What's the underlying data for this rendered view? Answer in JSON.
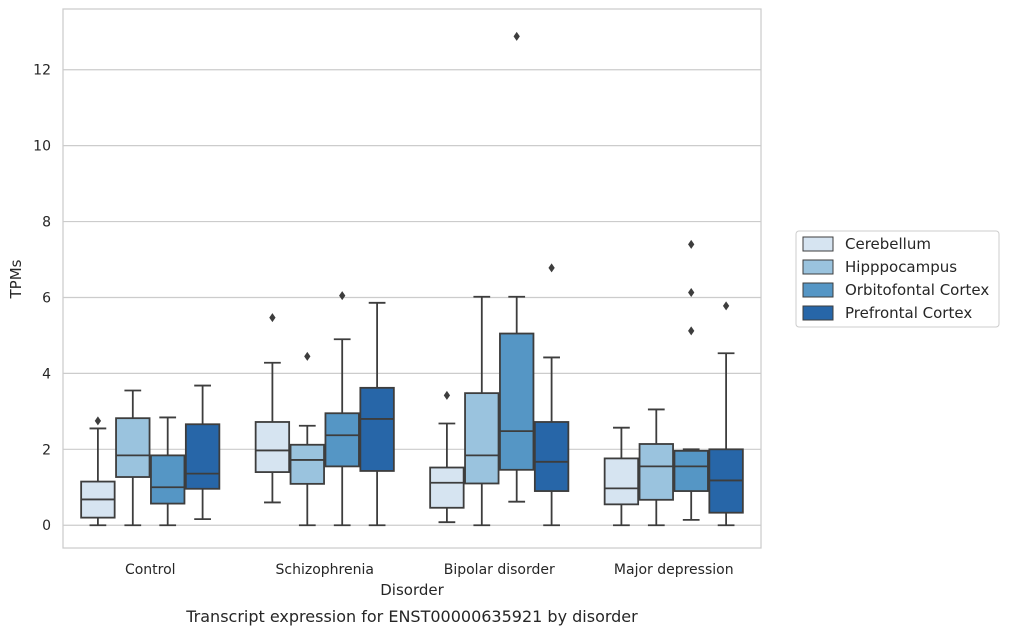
{
  "chart_data": {
    "type": "box",
    "caption": "Transcript expression for ENST00000635921 by disorder",
    "xlabel": "Disorder",
    "ylabel": "TPMs",
    "ylim": [
      -0.6,
      13.6
    ],
    "yticks": [
      0,
      2,
      4,
      6,
      8,
      10,
      12
    ],
    "grid": true,
    "legend_position": "right",
    "categories": [
      "Control",
      "Schizophrenia",
      "Bipolar disorder",
      "Major depression"
    ],
    "series": [
      {
        "name": "Cerebellum",
        "color": "#d6e4f1",
        "boxes": [
          {
            "whislo": 0.0,
            "q1": 0.2,
            "med": 0.68,
            "q3": 1.15,
            "whishi": 2.55,
            "fliers": [
              2.75
            ]
          },
          {
            "whislo": 0.6,
            "q1": 1.4,
            "med": 1.97,
            "q3": 2.72,
            "whishi": 4.28,
            "fliers": [
              5.47
            ]
          },
          {
            "whislo": 0.08,
            "q1": 0.46,
            "med": 1.12,
            "q3": 1.52,
            "whishi": 2.68,
            "fliers": [
              3.42
            ]
          },
          {
            "whislo": 0.0,
            "q1": 0.55,
            "med": 0.97,
            "q3": 1.76,
            "whishi": 2.57,
            "fliers": []
          }
        ]
      },
      {
        "name": "Hipppocampus",
        "color": "#9ac3de",
        "boxes": [
          {
            "whislo": 0.0,
            "q1": 1.27,
            "med": 1.84,
            "q3": 2.82,
            "whishi": 3.55,
            "fliers": []
          },
          {
            "whislo": 0.0,
            "q1": 1.09,
            "med": 1.72,
            "q3": 2.12,
            "whishi": 2.62,
            "fliers": [
              4.45
            ]
          },
          {
            "whislo": 0.0,
            "q1": 1.1,
            "med": 1.84,
            "q3": 3.48,
            "whishi": 6.02,
            "fliers": []
          },
          {
            "whislo": 0.0,
            "q1": 0.67,
            "med": 1.55,
            "q3": 2.14,
            "whishi": 3.05,
            "fliers": []
          }
        ]
      },
      {
        "name": "Orbitofontal Cortex",
        "color": "#5596c5",
        "boxes": [
          {
            "whislo": 0.0,
            "q1": 0.57,
            "med": 1.0,
            "q3": 1.84,
            "whishi": 2.84,
            "fliers": []
          },
          {
            "whislo": 0.0,
            "q1": 1.55,
            "med": 2.37,
            "q3": 2.95,
            "whishi": 4.9,
            "fliers": [
              6.05
            ]
          },
          {
            "whislo": 0.62,
            "q1": 1.46,
            "med": 2.48,
            "q3": 5.05,
            "whishi": 6.02,
            "fliers": [
              12.88
            ]
          },
          {
            "whislo": 0.14,
            "q1": 0.9,
            "med": 1.55,
            "q3": 1.96,
            "whishi": 2.0,
            "fliers": [
              5.12,
              6.13,
              7.4
            ]
          }
        ]
      },
      {
        "name": "Prefrontal Cortex",
        "color": "#2766a8",
        "boxes": [
          {
            "whislo": 0.16,
            "q1": 0.96,
            "med": 1.36,
            "q3": 2.66,
            "whishi": 3.68,
            "fliers": []
          },
          {
            "whislo": 0.0,
            "q1": 1.43,
            "med": 2.8,
            "q3": 3.62,
            "whishi": 5.86,
            "fliers": []
          },
          {
            "whislo": 0.0,
            "q1": 0.9,
            "med": 1.67,
            "q3": 2.72,
            "whishi": 4.42,
            "fliers": [
              6.78
            ]
          },
          {
            "whislo": 0.0,
            "q1": 0.33,
            "med": 1.18,
            "q3": 2.0,
            "whishi": 4.53,
            "fliers": [
              5.78
            ]
          }
        ]
      }
    ]
  }
}
